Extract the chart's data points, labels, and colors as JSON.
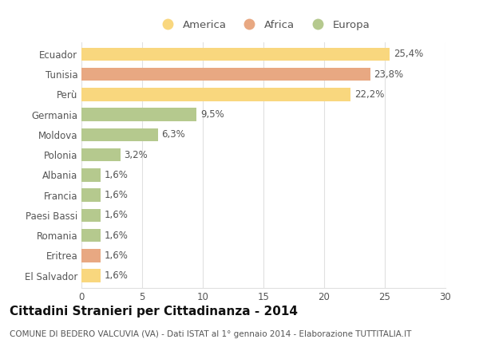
{
  "categories": [
    "Ecuador",
    "Tunisia",
    "Perù",
    "Germania",
    "Moldova",
    "Polonia",
    "Albania",
    "Francia",
    "Paesi Bassi",
    "Romania",
    "Eritrea",
    "El Salvador"
  ],
  "values": [
    25.4,
    23.8,
    22.2,
    9.5,
    6.3,
    3.2,
    1.6,
    1.6,
    1.6,
    1.6,
    1.6,
    1.6
  ],
  "labels": [
    "25,4%",
    "23,8%",
    "22,2%",
    "9,5%",
    "6,3%",
    "3,2%",
    "1,6%",
    "1,6%",
    "1,6%",
    "1,6%",
    "1,6%",
    "1,6%"
  ],
  "continents": [
    "America",
    "Africa",
    "America",
    "Europa",
    "Europa",
    "Europa",
    "Europa",
    "Europa",
    "Europa",
    "Europa",
    "Africa",
    "America"
  ],
  "colors": {
    "America": "#F9D77E",
    "Africa": "#E8A882",
    "Europa": "#B5C98E"
  },
  "xlim": [
    0,
    30
  ],
  "xticks": [
    0,
    5,
    10,
    15,
    20,
    25,
    30
  ],
  "title": "Cittadini Stranieri per Cittadinanza - 2014",
  "subtitle": "COMUNE DI BEDERO VALCUVIA (VA) - Dati ISTAT al 1° gennaio 2014 - Elaborazione TUTTITALIA.IT",
  "background_color": "#ffffff",
  "grid_color": "#e0e0e0",
  "bar_height": 0.65,
  "label_fontsize": 8.5,
  "tick_fontsize": 8.5,
  "legend_fontsize": 9.5,
  "title_fontsize": 11,
  "subtitle_fontsize": 7.5,
  "label_color": "#555555",
  "title_color": "#111111",
  "subtitle_color": "#555555"
}
